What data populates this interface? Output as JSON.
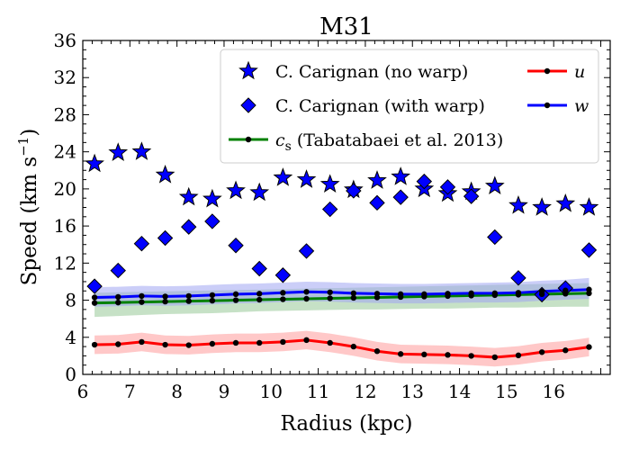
{
  "chart_data": {
    "type": "line",
    "title": "M31",
    "xlabel": "Radius (kpc)",
    "ylabel": {
      "main": "Speed (km s",
      "sup": "−1",
      "close": ")"
    },
    "xlim": [
      6,
      17.2
    ],
    "ylim": [
      0,
      36
    ],
    "xticks": [
      6,
      7,
      8,
      9,
      10,
      11,
      12,
      13,
      14,
      15,
      16
    ],
    "yticks": [
      0,
      4,
      8,
      12,
      16,
      20,
      24,
      28,
      32,
      36
    ],
    "grid": false,
    "legend_placement": "top-right",
    "x": [
      6.25,
      6.75,
      7.25,
      7.75,
      8.25,
      8.75,
      9.25,
      9.75,
      10.25,
      10.75,
      11.25,
      11.75,
      12.25,
      12.75,
      13.25,
      13.75,
      14.25,
      14.75,
      15.25,
      15.75,
      16.25,
      16.75
    ],
    "series": [
      {
        "name": "C. Carignan (no warp)",
        "marker": "star",
        "color": "#0000ff",
        "values": [
          22.7,
          23.9,
          24.0,
          21.5,
          19.1,
          18.9,
          19.8,
          19.6,
          21.2,
          21.0,
          20.5,
          19.9,
          20.9,
          21.3,
          20.0,
          19.5,
          19.7,
          20.3,
          18.2,
          18.0,
          18.4,
          18.0
        ]
      },
      {
        "name": "C. Carignan (with warp)",
        "marker": "diamond",
        "color": "#0000ff",
        "values": [
          9.5,
          11.2,
          14.1,
          14.7,
          15.9,
          16.5,
          13.9,
          11.4,
          10.7,
          13.3,
          17.8,
          19.8,
          18.5,
          19.1,
          20.8,
          20.2,
          19.2,
          14.8,
          10.4,
          8.6,
          9.3,
          13.4
        ]
      },
      {
        "name": "c",
        "name_sub": "s",
        "name_rest": " (Tabatabaei et al. 2013)",
        "marker": "line",
        "color": "#008000",
        "band_color": "#98c998",
        "values": [
          7.7,
          7.75,
          7.8,
          7.85,
          7.9,
          7.95,
          8.0,
          8.05,
          8.1,
          8.15,
          8.2,
          8.25,
          8.3,
          8.35,
          8.4,
          8.45,
          8.5,
          8.55,
          8.6,
          8.65,
          8.7,
          8.75
        ],
        "lower": [
          6.2,
          6.3,
          6.4,
          6.5,
          6.55,
          6.6,
          6.7,
          6.8,
          6.85,
          6.9,
          6.95,
          7.0,
          7.0,
          7.05,
          7.1,
          7.1,
          7.15,
          7.2,
          7.2,
          7.25,
          7.3,
          7.3
        ],
        "upper": [
          8.8,
          8.85,
          8.9,
          8.95,
          9.0,
          9.05,
          9.1,
          9.15,
          9.2,
          9.25,
          9.3,
          9.35,
          9.4,
          9.45,
          9.5,
          9.55,
          9.6,
          9.65,
          9.7,
          9.75,
          9.8,
          9.85
        ]
      },
      {
        "name": "u",
        "marker": "line-dot",
        "color": "#ff0000",
        "band_color": "#ff9a9a",
        "values": [
          3.2,
          3.25,
          3.5,
          3.2,
          3.15,
          3.3,
          3.4,
          3.4,
          3.5,
          3.7,
          3.4,
          3.0,
          2.5,
          2.2,
          2.15,
          2.1,
          2.0,
          1.85,
          2.05,
          2.4,
          2.6,
          2.95
        ],
        "lower": [
          2.2,
          2.25,
          2.5,
          2.2,
          2.15,
          2.3,
          2.4,
          2.4,
          2.5,
          2.7,
          2.4,
          2.0,
          1.5,
          1.2,
          1.15,
          1.1,
          1.0,
          0.85,
          1.05,
          1.4,
          1.6,
          1.95
        ],
        "upper": [
          4.2,
          4.25,
          4.5,
          4.2,
          4.15,
          4.3,
          4.4,
          4.4,
          4.5,
          4.7,
          4.4,
          4.0,
          3.5,
          3.2,
          3.15,
          3.1,
          3.0,
          2.85,
          3.05,
          3.4,
          3.6,
          3.95
        ]
      },
      {
        "name": "w",
        "marker": "line-dot",
        "color": "#0000ff",
        "band_color": "#a0a6f2",
        "values": [
          8.3,
          8.35,
          8.45,
          8.4,
          8.45,
          8.55,
          8.65,
          8.7,
          8.8,
          8.9,
          8.85,
          8.75,
          8.7,
          8.65,
          8.65,
          8.7,
          8.75,
          8.75,
          8.8,
          8.95,
          9.05,
          9.15
        ],
        "lower": [
          7.3,
          7.35,
          7.45,
          7.4,
          7.45,
          7.55,
          7.65,
          7.7,
          7.8,
          7.9,
          7.85,
          7.75,
          7.7,
          7.65,
          7.65,
          7.7,
          7.75,
          7.75,
          7.8,
          7.95,
          8.05,
          8.15
        ],
        "upper": [
          9.4,
          9.45,
          9.55,
          9.5,
          9.55,
          9.65,
          9.75,
          9.8,
          9.9,
          10.0,
          9.95,
          9.85,
          9.8,
          9.75,
          9.75,
          9.8,
          9.85,
          9.9,
          9.95,
          10.1,
          10.2,
          10.4
        ]
      }
    ]
  }
}
